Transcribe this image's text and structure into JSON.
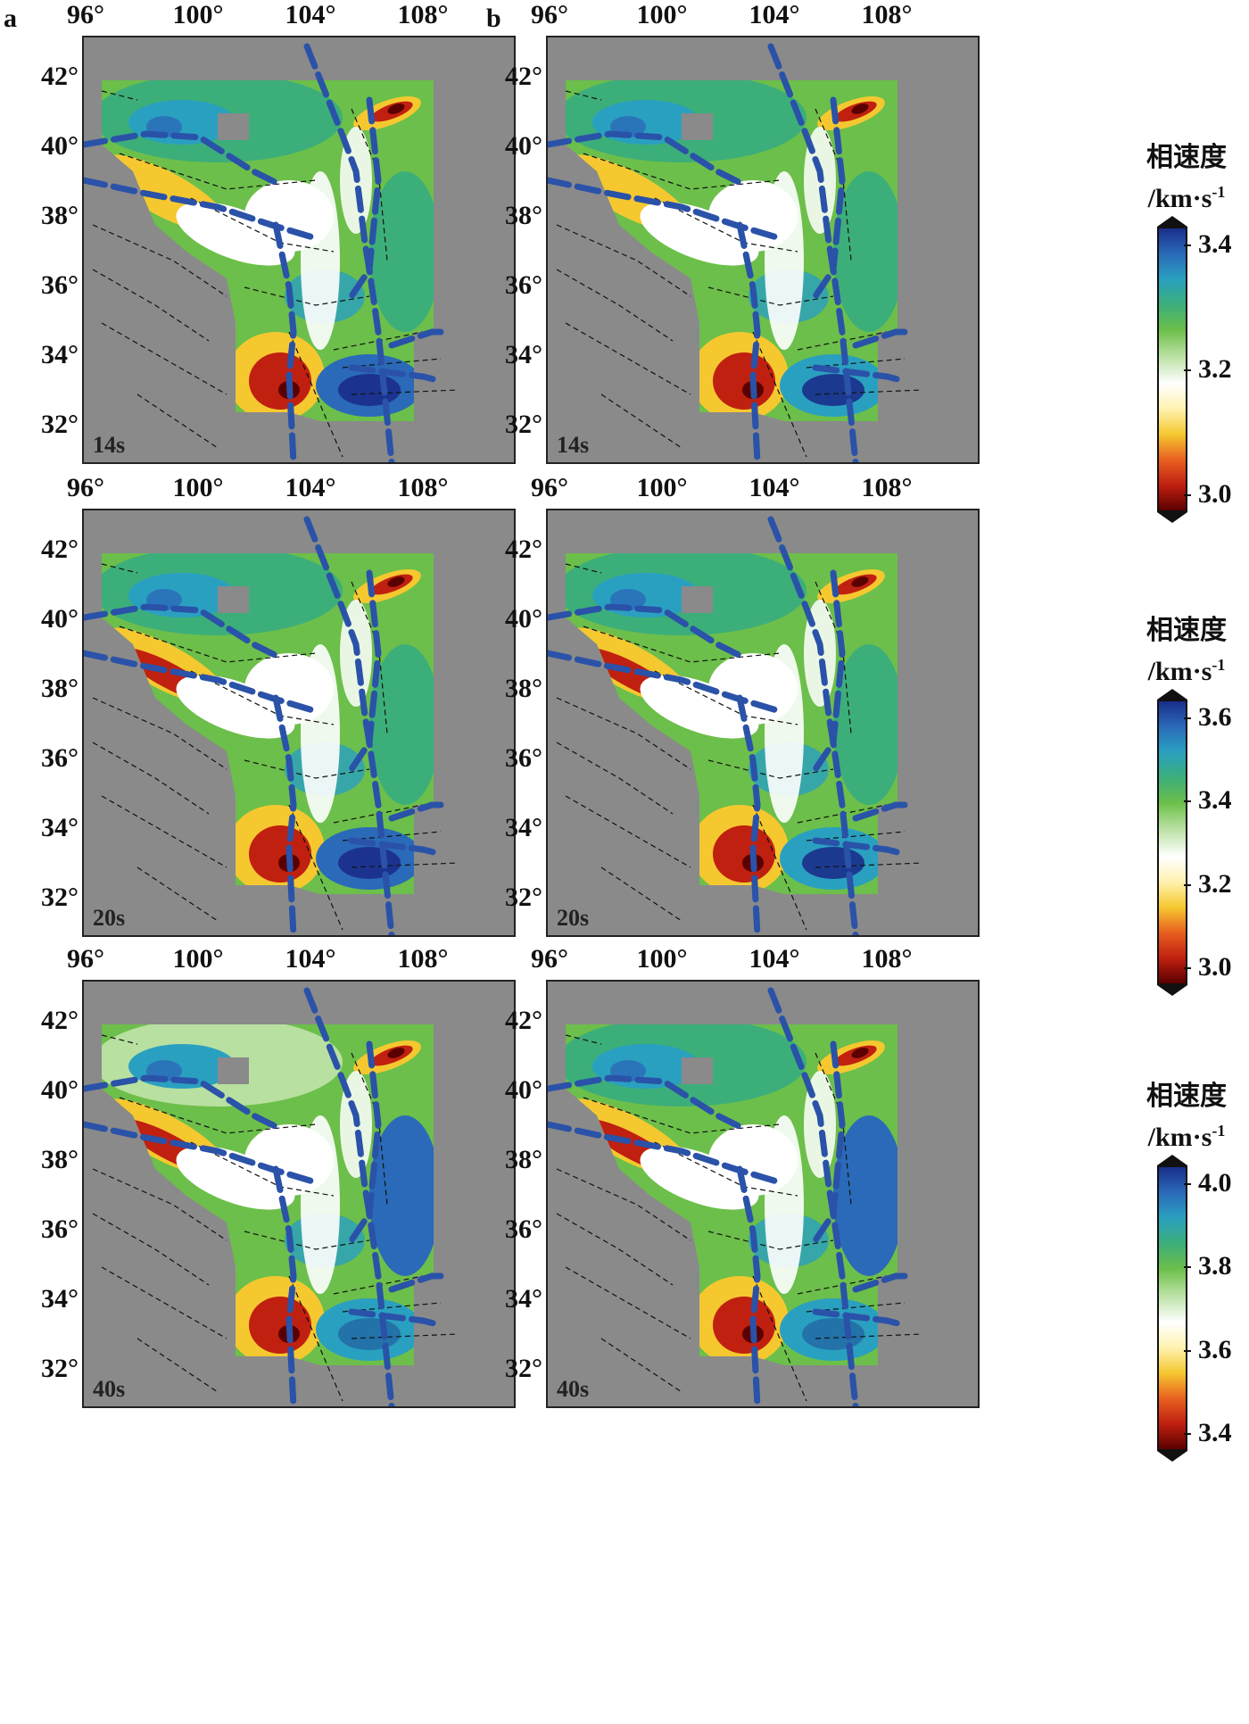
{
  "columns": [
    "a",
    "b"
  ],
  "x_ticks": [
    "96°",
    "100°",
    "104°",
    "108°"
  ],
  "y_ticks": [
    "42°",
    "40°",
    "38°",
    "36°",
    "34°",
    "32°"
  ],
  "periods": [
    "14s",
    "20s",
    "40s"
  ],
  "colorbars": [
    {
      "title_line1": "相速度",
      "title_line2": "/km·s",
      "title_sup": "-1",
      "ticks": [
        "3.4",
        "3.2",
        "3.0"
      ]
    },
    {
      "title_line1": "相速度",
      "title_line2": "/km·s",
      "title_sup": "-1",
      "ticks": [
        "3.6",
        "3.4",
        "3.2",
        "3.0"
      ]
    },
    {
      "title_line1": "相速度",
      "title_line2": "/km·s",
      "title_sup": "-1",
      "ticks": [
        "4.0",
        "3.8",
        "3.6",
        "3.4"
      ]
    }
  ],
  "colors": {
    "background_gray": "#8a8a8a",
    "boundary_blue": "#2a52a8",
    "scale": [
      "#5a0000",
      "#c02010",
      "#e86020",
      "#f5c830",
      "#fff2b0",
      "#ffffff",
      "#b8e0a0",
      "#6cbf4a",
      "#3cae7a",
      "#2aa0c0",
      "#2a6ab8",
      "#1a2e8a"
    ]
  }
}
